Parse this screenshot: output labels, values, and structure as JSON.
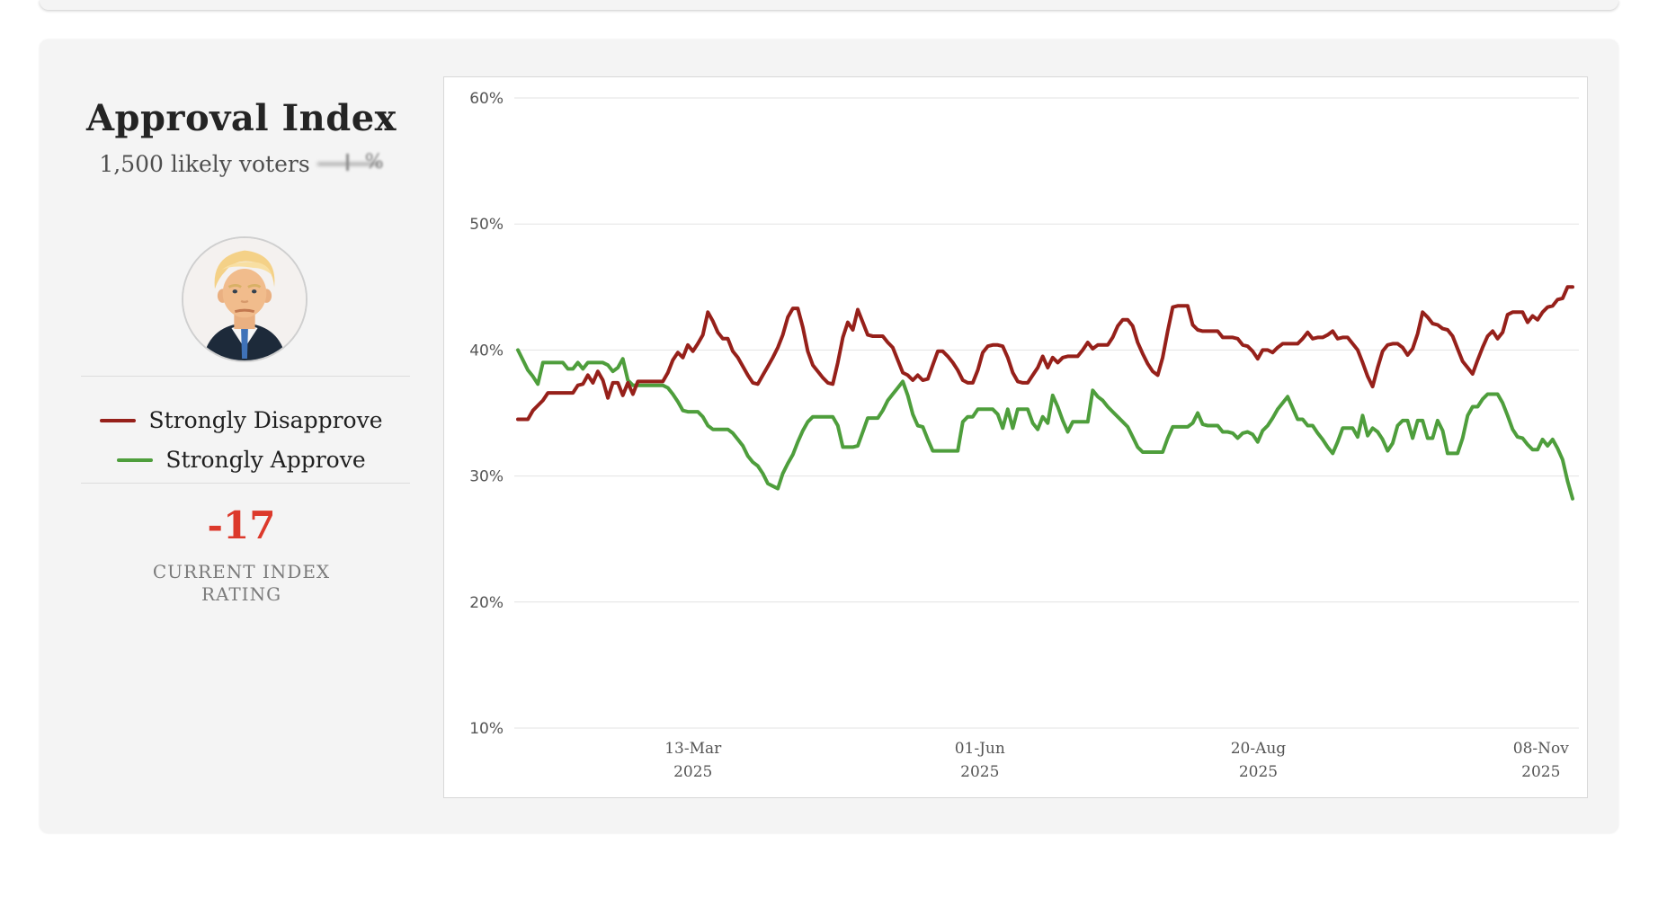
{
  "header": {
    "title": "Approval Index",
    "subtitle": "1,500 likely voters",
    "subtitle_blurred_fragment": "%"
  },
  "index_summary": {
    "value": "-17",
    "label": "CURRENT INDEX RATING",
    "value_color": "#dc392b"
  },
  "chart_data": {
    "type": "line",
    "title": "Approval Index",
    "xlabel": "",
    "ylabel": "",
    "grid": true,
    "legend_position": "left-panel",
    "ylim": [
      10,
      60
    ],
    "y_axis": {
      "max": 60,
      "min": 10,
      "ticks": [
        {
          "value": 60,
          "label": "60%"
        },
        {
          "value": 50,
          "label": "50%"
        },
        {
          "value": 40,
          "label": "40%"
        },
        {
          "value": 30,
          "label": "30%"
        },
        {
          "value": 20,
          "label": "20%"
        },
        {
          "value": 10,
          "label": "10%"
        }
      ]
    },
    "x_axis": {
      "ticks": [
        {
          "line1": "13-Mar",
          "line2": "2025",
          "f": 0.166
        },
        {
          "line1": "01-Jun",
          "line2": "2025",
          "f": 0.438
        },
        {
          "line1": "20-Aug",
          "line2": "2025",
          "f": 0.702
        },
        {
          "line1": "08-Nov",
          "line2": "2025",
          "f": 0.97
        }
      ],
      "range_note": "daily tracking, late Jan 2025 through mid Nov 2025"
    },
    "series": [
      {
        "name": "Strongly Disapprove",
        "color": "#96201a",
        "values": [
          34.5,
          34.5,
          34.5,
          35.2,
          35.6,
          36,
          36.6,
          36.6,
          36.6,
          36.6,
          36.6,
          36.6,
          37.2,
          37.3,
          38,
          37.4,
          38.3,
          37.6,
          36.2,
          37.4,
          37.4,
          36.4,
          37.4,
          36.5,
          37.5,
          37.5,
          37.5,
          37.5,
          37.5,
          37.5,
          38.2,
          39.2,
          39.8,
          39.4,
          40.4,
          39.9,
          40.5,
          41.2,
          43,
          42.3,
          41.4,
          40.9,
          40.9,
          39.9,
          39.4,
          38.7,
          38,
          37.4,
          37.3,
          38,
          38.7,
          39.4,
          40.2,
          41.2,
          42.6,
          43.3,
          43.3,
          41.8,
          39.9,
          38.8,
          38.3,
          37.8,
          37.4,
          37.3,
          39,
          41,
          42.2,
          41.6,
          43.2,
          42.2,
          41.2,
          41.1,
          41.1,
          41.1,
          40.6,
          40.2,
          39.2,
          38.2,
          38,
          37.6,
          38,
          37.6,
          37.7,
          38.8,
          39.9,
          39.9,
          39.5,
          39,
          38.4,
          37.6,
          37.4,
          37.4,
          38.4,
          39.8,
          40.3,
          40.4,
          40.4,
          40.3,
          39.4,
          38.2,
          37.5,
          37.4,
          37.4,
          38,
          38.6,
          39.5,
          38.6,
          39.4,
          39,
          39.4,
          39.5,
          39.5,
          39.5,
          40,
          40.6,
          40.1,
          40.4,
          40.4,
          40.4,
          41,
          41.9,
          42.4,
          42.4,
          41.9,
          40.6,
          39.7,
          38.9,
          38.3,
          38,
          39.4,
          41.5,
          43.4,
          43.5,
          43.5,
          43.5,
          42,
          41.6,
          41.5,
          41.5,
          41.5,
          41.5,
          41,
          41,
          41,
          40.9,
          40.4,
          40.3,
          39.9,
          39.3,
          40,
          40,
          39.8,
          40.2,
          40.5,
          40.5,
          40.5,
          40.5,
          40.9,
          41.4,
          40.9,
          41,
          41,
          41.2,
          41.5,
          40.9,
          41,
          41,
          40.5,
          40,
          39,
          37.9,
          37.1,
          38.6,
          39.9,
          40.4,
          40.5,
          40.5,
          40.2,
          39.6,
          40.1,
          41.3,
          43,
          42.6,
          42.1,
          42,
          41.7,
          41.6,
          41.1,
          40.1,
          39.1,
          38.6,
          38.1,
          39.2,
          40.2,
          41.1,
          41.5,
          40.9,
          41.4,
          42.8,
          43,
          43,
          43,
          42.2,
          42.7,
          42.4,
          43,
          43.4,
          43.5,
          44,
          44.1,
          45,
          45
        ]
      },
      {
        "name": "Strongly Approve",
        "color": "#4e9e3c",
        "values": [
          40,
          39.2,
          38.4,
          37.9,
          37.3,
          39,
          39,
          39,
          39,
          39,
          38.5,
          38.5,
          39,
          38.5,
          39,
          39,
          39,
          39,
          38.8,
          38.3,
          38.6,
          39.3,
          37.6,
          37.2,
          37.2,
          37.2,
          37.2,
          37.2,
          37.2,
          37.2,
          37,
          36.5,
          35.9,
          35.2,
          35.1,
          35.1,
          35.1,
          34.7,
          34,
          33.7,
          33.7,
          33.7,
          33.7,
          33.4,
          32.9,
          32.4,
          31.6,
          31.1,
          30.8,
          30.2,
          29.4,
          29.2,
          29,
          30.2,
          31,
          31.7,
          32.7,
          33.6,
          34.3,
          34.7,
          34.7,
          34.7,
          34.7,
          34.7,
          34,
          32.3,
          32.3,
          32.3,
          32.4,
          33.5,
          34.6,
          34.6,
          34.6,
          35.2,
          36,
          36.5,
          37,
          37.5,
          36.4,
          34.9,
          34,
          33.9,
          32.9,
          32,
          32,
          32,
          32,
          32,
          32,
          34.3,
          34.7,
          34.7,
          35.3,
          35.3,
          35.3,
          35.3,
          34.9,
          33.8,
          35.3,
          33.8,
          35.3,
          35.3,
          35.3,
          34.2,
          33.7,
          34.7,
          34.2,
          36.4,
          35.5,
          34.4,
          33.5,
          34.3,
          34.3,
          34.3,
          34.3,
          36.8,
          36.3,
          36,
          35.5,
          35.1,
          34.7,
          34.3,
          33.9,
          33.1,
          32.3,
          31.9,
          31.9,
          31.9,
          31.9,
          31.9,
          33,
          33.9,
          33.9,
          33.9,
          33.9,
          34.2,
          35,
          34.1,
          34,
          34,
          34,
          33.5,
          33.5,
          33.4,
          33,
          33.4,
          33.5,
          33.3,
          32.7,
          33.6,
          34,
          34.6,
          35.3,
          35.8,
          36.3,
          35.4,
          34.5,
          34.5,
          34,
          34,
          33.4,
          32.9,
          32.3,
          31.8,
          32.7,
          33.8,
          33.8,
          33.8,
          33.1,
          34.8,
          33.2,
          33.8,
          33.5,
          32.9,
          32,
          32.6,
          34,
          34.4,
          34.4,
          33,
          34.4,
          34.4,
          33,
          33,
          34.4,
          33.6,
          31.8,
          31.8,
          31.8,
          33,
          34.8,
          35.5,
          35.5,
          36.1,
          36.5,
          36.5,
          36.5,
          35.8,
          34.8,
          33.7,
          33.1,
          33,
          32.5,
          32.1,
          32.1,
          32.9,
          32.4,
          32.9,
          32.2,
          31.3,
          29.6,
          28.2
        ]
      }
    ]
  }
}
